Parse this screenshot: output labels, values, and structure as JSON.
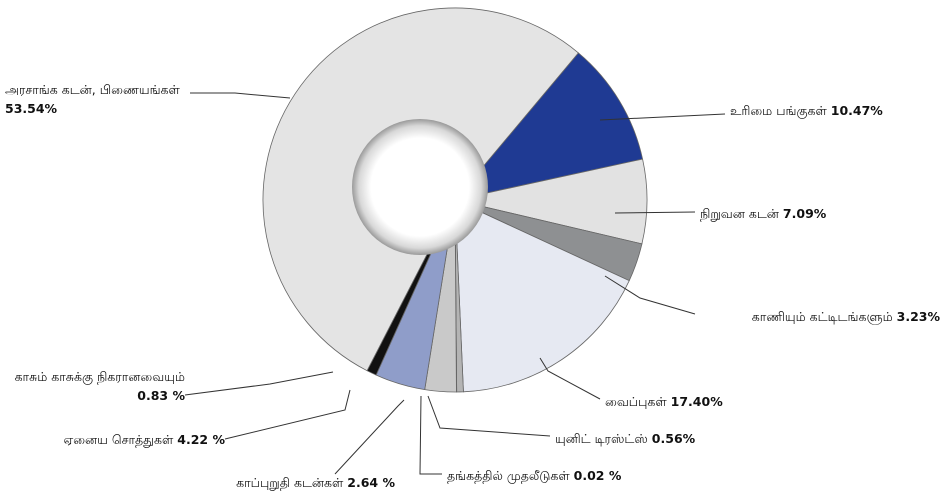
{
  "chart_data": {
    "type": "pie",
    "categories": [
      "உரிமை பங்குகள்",
      "நிறுவன கடன்",
      "காணியும் கட்டிடங்களும்",
      "வைப்புகள்",
      "யுனிட் டிரஸ்ட்ஸ்",
      "தங்கத்தில் முதலீடுகள்",
      "காப்புறுதி கடன்கள்",
      "ஏனைய சொத்துகள்",
      "காசும் காசுக்கு நிகரானவையும்",
      "அரசாங்க கடன், பிணையங்கள்"
    ],
    "values": [
      10.47,
      7.09,
      3.23,
      17.4,
      0.56,
      0.02,
      2.64,
      4.22,
      0.83,
      53.54
    ],
    "value_labels": [
      "10.47%",
      "7.09%",
      "3.23%",
      "17.40%",
      "0.56%",
      "0.02 %",
      "2.64 %",
      "4.22 %",
      "0.83 %",
      "53.54%"
    ],
    "colors": [
      "#1f3a93",
      "#e2e2e2",
      "#8e9092",
      "#e6e9f2",
      "#b4b4b4",
      "#d0d0d0",
      "#c9c9c9",
      "#8f9dc9",
      "#111111",
      "#e4e4e4"
    ]
  }
}
